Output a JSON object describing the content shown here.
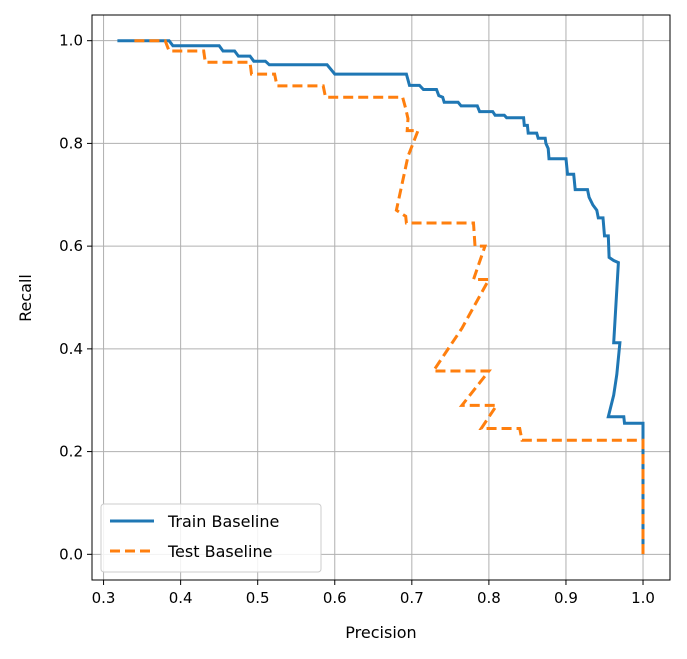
{
  "chart_data": {
    "type": "line",
    "title": "",
    "xlabel": "Precision",
    "ylabel": "Recall",
    "xlim": [
      0.285,
      1.035
    ],
    "ylim": [
      -0.05,
      1.05
    ],
    "xticks": [
      "0.3",
      "0.4",
      "0.5",
      "0.6",
      "0.7",
      "0.8",
      "0.9",
      "1.0"
    ],
    "yticks": [
      "0.0",
      "0.2",
      "0.4",
      "0.6",
      "0.8",
      "1.0"
    ],
    "grid": true,
    "legend_position": "lower-left",
    "series": [
      {
        "name": "Train Baseline",
        "color": "#1f77b4",
        "style": "solid",
        "points": [
          [
            0.318,
            1.0
          ],
          [
            0.385,
            1.0
          ],
          [
            0.39,
            0.99
          ],
          [
            0.45,
            0.99
          ],
          [
            0.455,
            0.98
          ],
          [
            0.47,
            0.98
          ],
          [
            0.475,
            0.97
          ],
          [
            0.49,
            0.97
          ],
          [
            0.495,
            0.96
          ],
          [
            0.51,
            0.96
          ],
          [
            0.515,
            0.953
          ],
          [
            0.59,
            0.953
          ],
          [
            0.6,
            0.935
          ],
          [
            0.693,
            0.935
          ],
          [
            0.697,
            0.913
          ],
          [
            0.71,
            0.913
          ],
          [
            0.715,
            0.905
          ],
          [
            0.732,
            0.905
          ],
          [
            0.735,
            0.893
          ],
          [
            0.74,
            0.89
          ],
          [
            0.742,
            0.88
          ],
          [
            0.76,
            0.88
          ],
          [
            0.764,
            0.873
          ],
          [
            0.785,
            0.873
          ],
          [
            0.788,
            0.862
          ],
          [
            0.805,
            0.862
          ],
          [
            0.808,
            0.855
          ],
          [
            0.82,
            0.855
          ],
          [
            0.823,
            0.85
          ],
          [
            0.845,
            0.85
          ],
          [
            0.846,
            0.835
          ],
          [
            0.85,
            0.835
          ],
          [
            0.851,
            0.82
          ],
          [
            0.862,
            0.82
          ],
          [
            0.864,
            0.81
          ],
          [
            0.873,
            0.81
          ],
          [
            0.874,
            0.8
          ],
          [
            0.877,
            0.79
          ],
          [
            0.878,
            0.77
          ],
          [
            0.9,
            0.77
          ],
          [
            0.902,
            0.74
          ],
          [
            0.91,
            0.74
          ],
          [
            0.912,
            0.71
          ],
          [
            0.928,
            0.71
          ],
          [
            0.93,
            0.695
          ],
          [
            0.935,
            0.68
          ],
          [
            0.94,
            0.67
          ],
          [
            0.942,
            0.655
          ],
          [
            0.948,
            0.655
          ],
          [
            0.95,
            0.62
          ],
          [
            0.955,
            0.62
          ],
          [
            0.956,
            0.578
          ],
          [
            0.962,
            0.572
          ],
          [
            0.968,
            0.568
          ],
          [
            0.962,
            0.412
          ],
          [
            0.97,
            0.412
          ],
          [
            0.966,
            0.35
          ],
          [
            0.962,
            0.31
          ],
          [
            0.955,
            0.268
          ],
          [
            0.975,
            0.268
          ],
          [
            0.976,
            0.255
          ],
          [
            1.0,
            0.255
          ],
          [
            1.0,
            0.0
          ]
        ]
      },
      {
        "name": "Test Baseline",
        "color": "#ff7f0e",
        "style": "dashed",
        "points": [
          [
            0.34,
            1.0
          ],
          [
            0.38,
            1.0
          ],
          [
            0.385,
            0.98
          ],
          [
            0.43,
            0.98
          ],
          [
            0.432,
            0.958
          ],
          [
            0.49,
            0.958
          ],
          [
            0.492,
            0.935
          ],
          [
            0.522,
            0.935
          ],
          [
            0.525,
            0.912
          ],
          [
            0.585,
            0.912
          ],
          [
            0.588,
            0.89
          ],
          [
            0.688,
            0.89
          ],
          [
            0.692,
            0.868
          ],
          [
            0.695,
            0.848
          ],
          [
            0.694,
            0.825
          ],
          [
            0.708,
            0.825
          ],
          [
            0.695,
            0.775
          ],
          [
            0.68,
            0.67
          ],
          [
            0.692,
            0.658
          ],
          [
            0.693,
            0.645
          ],
          [
            0.78,
            0.645
          ],
          [
            0.782,
            0.6
          ],
          [
            0.795,
            0.6
          ],
          [
            0.78,
            0.535
          ],
          [
            0.8,
            0.535
          ],
          [
            0.765,
            0.44
          ],
          [
            0.728,
            0.357
          ],
          [
            0.8,
            0.357
          ],
          [
            0.765,
            0.29
          ],
          [
            0.81,
            0.29
          ],
          [
            0.79,
            0.245
          ],
          [
            0.84,
            0.245
          ],
          [
            0.843,
            0.222
          ],
          [
            1.0,
            0.222
          ],
          [
            1.0,
            0.0
          ]
        ]
      }
    ]
  }
}
